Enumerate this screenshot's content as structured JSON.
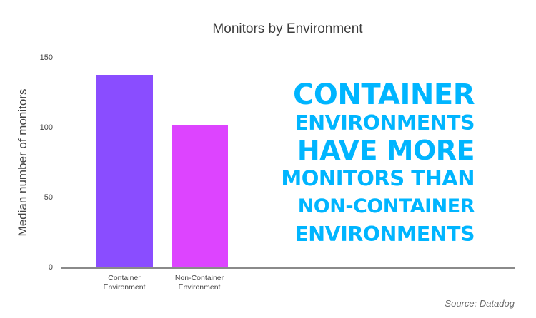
{
  "chart_data": {
    "type": "bar",
    "title": "Monitors by Environment",
    "xlabel": "",
    "ylabel": "Median number of monitors",
    "categories": [
      "Container Environment",
      "Non-Container Environment"
    ],
    "category_lines": [
      [
        "Container",
        "Environment"
      ],
      [
        "Non-Container",
        "Environment"
      ]
    ],
    "values": [
      138,
      102
    ],
    "colors": [
      "#8a4dff",
      "#dd44ff"
    ],
    "ylim": [
      0,
      150
    ],
    "yticks": [
      "150",
      "100",
      "50",
      "0"
    ],
    "grid": true,
    "legend": null,
    "annotation": [
      "CONTAINER",
      "ENVIRONMENTS",
      "HAVE MORE",
      "MONITORS THAN",
      "NON-CONTAINER",
      "ENVIRONMENTS"
    ],
    "annotation_color": "#00b5ff",
    "source": "Source: Datadog"
  }
}
